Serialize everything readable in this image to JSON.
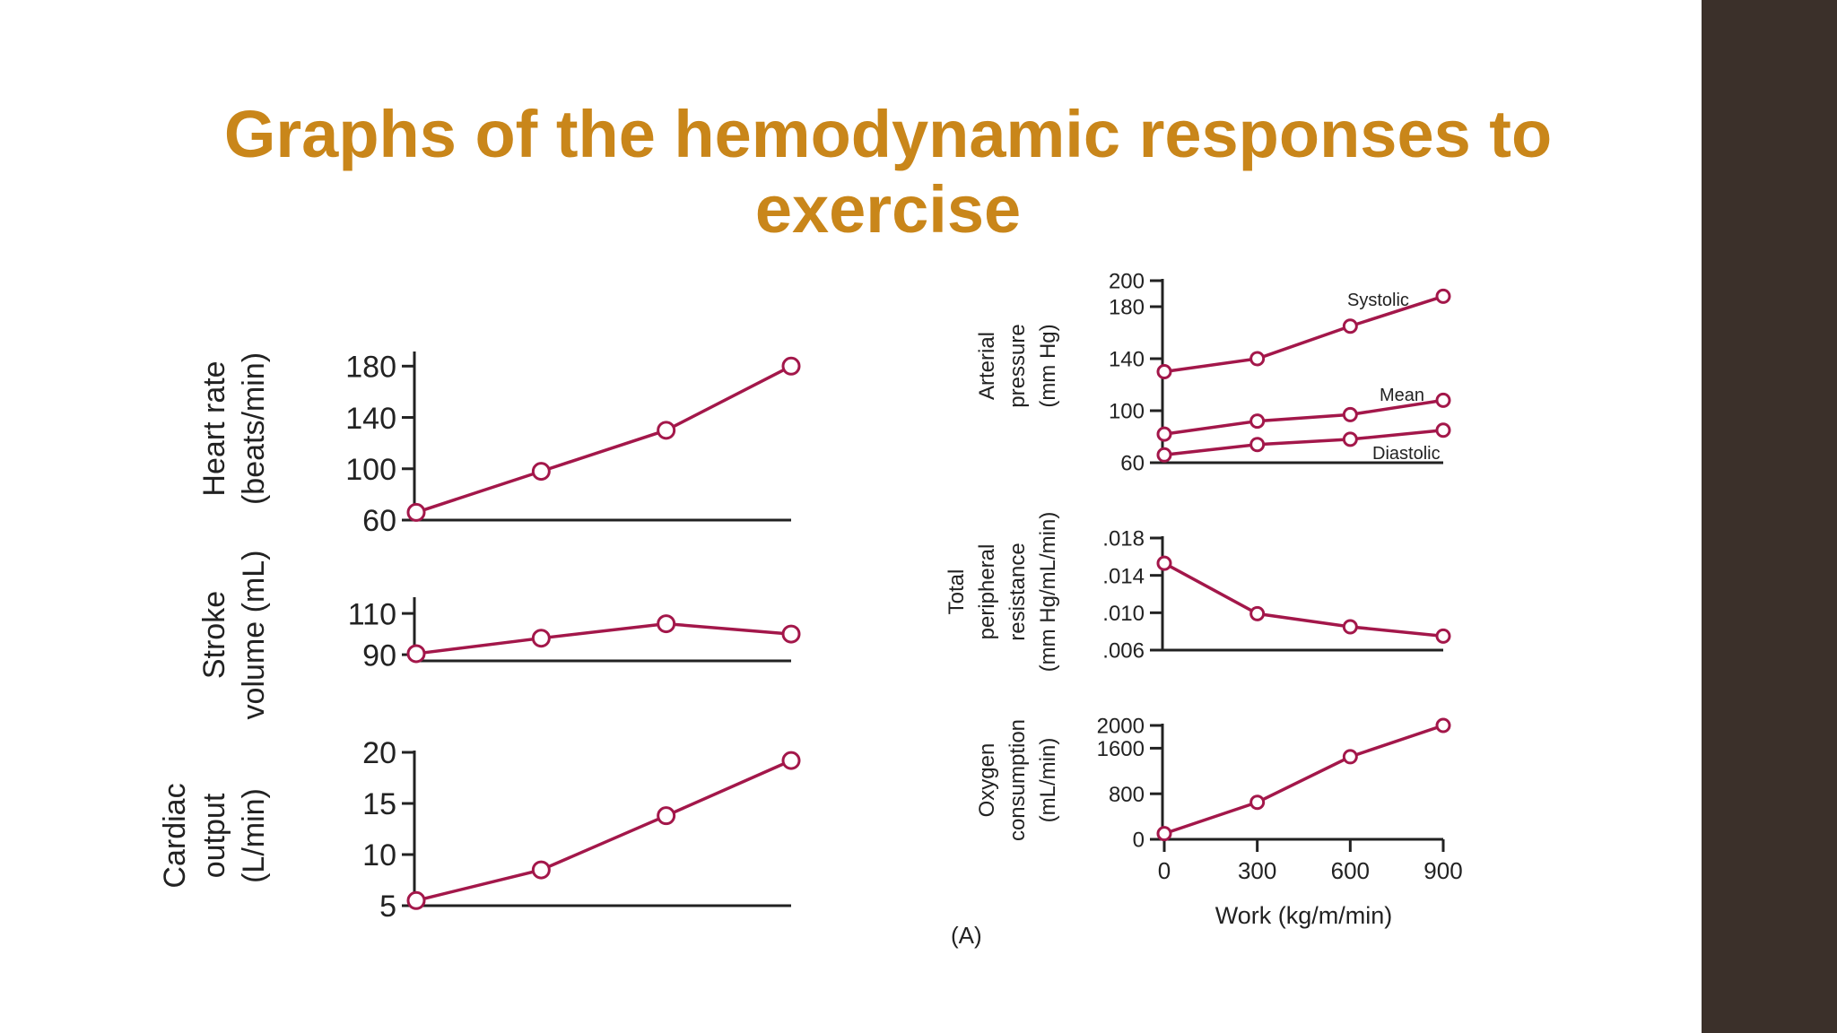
{
  "slide": {
    "title": "Graphs of the hemodynamic responses to exercise",
    "panel_label": "(A)",
    "colors": {
      "title": "#c9861a",
      "line": "#a3174a",
      "side_bar": "#3b302a"
    }
  },
  "chart_data": [
    {
      "id": "heart-rate",
      "type": "line",
      "ylabel": [
        "Heart rate",
        "(beats/min)"
      ],
      "yticks": [
        60,
        100,
        140,
        180
      ],
      "ylim": [
        60,
        190
      ],
      "x": [
        0,
        300,
        600,
        900
      ],
      "series": [
        {
          "values": [
            66,
            98,
            130,
            180
          ]
        }
      ]
    },
    {
      "id": "stroke-volume",
      "type": "line",
      "ylabel": [
        "Stroke",
        "volume (mL)"
      ],
      "yticks": [
        90,
        110
      ],
      "ylim": [
        87,
        117
      ],
      "x": [
        0,
        300,
        600,
        900
      ],
      "series": [
        {
          "values": [
            90.5,
            98,
            105,
            100
          ]
        }
      ]
    },
    {
      "id": "cardiac-output",
      "type": "line",
      "ylabel": [
        "Cardiac",
        "output",
        "(L/min)"
      ],
      "yticks": [
        5,
        10,
        15,
        20
      ],
      "ylim": [
        5,
        20
      ],
      "x": [
        0,
        300,
        600,
        900
      ],
      "series": [
        {
          "values": [
            5.5,
            8.5,
            13.8,
            19.2
          ]
        }
      ]
    },
    {
      "id": "arterial-pressure",
      "type": "line",
      "ylabel": [
        "Arterial",
        "pressure",
        "(mm Hg)"
      ],
      "yticks": [
        60,
        100,
        140,
        180,
        200
      ],
      "ylim": [
        60,
        200
      ],
      "x": [
        0,
        300,
        600,
        900
      ],
      "series": [
        {
          "name": "Systolic",
          "values": [
            130,
            140,
            165,
            188
          ]
        },
        {
          "name": "Mean",
          "values": [
            82,
            92,
            97,
            108
          ]
        },
        {
          "name": "Diastolic",
          "values": [
            66,
            74,
            78,
            85
          ]
        }
      ]
    },
    {
      "id": "peripheral-resistance",
      "type": "line",
      "ylabel": [
        "Total",
        "peripheral",
        "resistance",
        "(mm Hg/mL/min)"
      ],
      "yticks": [
        0.006,
        0.01,
        0.014,
        0.018
      ],
      "ytick_labels": [
        ".006",
        ".010",
        ".014",
        ".018"
      ],
      "ylim": [
        0.006,
        0.018
      ],
      "x": [
        0,
        300,
        600,
        900
      ],
      "series": [
        {
          "values": [
            0.0153,
            0.0099,
            0.0085,
            0.0075
          ]
        }
      ]
    },
    {
      "id": "oxygen-consumption",
      "type": "line",
      "ylabel": [
        "Oxygen",
        "consumption",
        "(mL/min)"
      ],
      "yticks": [
        0,
        800,
        1600,
        2000
      ],
      "ylim": [
        0,
        2000
      ],
      "x": [
        0,
        300,
        600,
        900
      ],
      "xticks": [
        0,
        300,
        600,
        900
      ],
      "xlabel": "Work (kg/m/min)",
      "series": [
        {
          "values": [
            100,
            650,
            1450,
            2000
          ]
        }
      ]
    }
  ]
}
